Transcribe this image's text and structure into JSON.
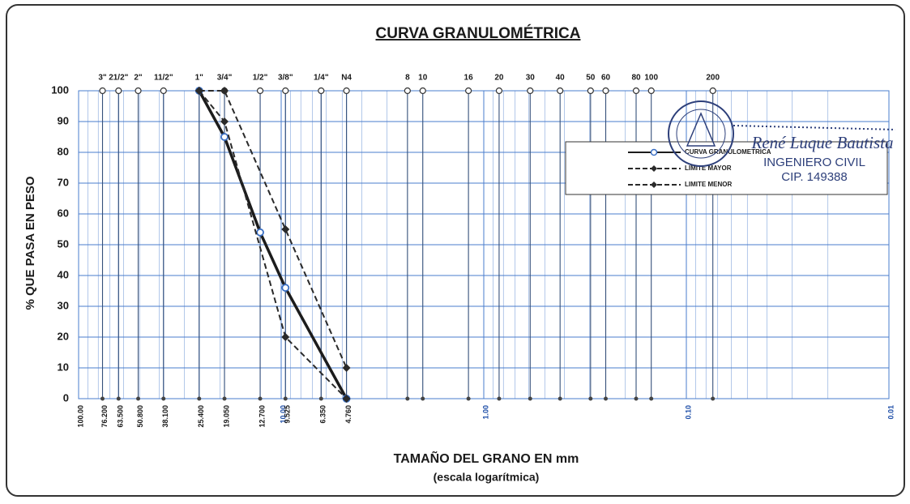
{
  "chart_data": {
    "type": "line",
    "title": "CURVA GRANULOMÉTRICA",
    "x_label": "TAMAÑO DEL GRANO EN mm",
    "x_sublabel": "(escala logarítmica)",
    "y_label": "% QUE PASA EN PESO",
    "xscale": "log",
    "xlim": [
      100,
      0.01
    ],
    "ylim": [
      0,
      100
    ],
    "yticks": [
      0,
      10,
      20,
      30,
      40,
      50,
      60,
      70,
      80,
      90,
      100
    ],
    "grid": true,
    "minor_grid": true,
    "grid_color": "#4a7ccc",
    "xticks": [
      {
        "value": 100,
        "label": "100.00"
      },
      {
        "value": 76.2,
        "label": "76.200"
      },
      {
        "value": 63.5,
        "label": "63.500"
      },
      {
        "value": 50.8,
        "label": "50.800"
      },
      {
        "value": 38.1,
        "label": "38.100"
      },
      {
        "value": 25.4,
        "label": "25.400"
      },
      {
        "value": 19.05,
        "label": "19.050"
      },
      {
        "value": 12.7,
        "label": "12.700"
      },
      {
        "value": 10,
        "label": "10.00",
        "color": "#1f4fa8"
      },
      {
        "value": 9.525,
        "label": "9.525"
      },
      {
        "value": 6.35,
        "label": "6.350"
      },
      {
        "value": 4.76,
        "label": "4.760"
      },
      {
        "value": 1,
        "label": "1.00",
        "color": "#1f4fa8"
      },
      {
        "value": 0.1,
        "label": "0.10",
        "color": "#1f4fa8"
      },
      {
        "value": 0.01,
        "label": "0.01",
        "color": "#1f4fa8"
      }
    ],
    "sieves": {
      "labels": [
        "3\"",
        "21/2\"",
        "2\"",
        "11/2\"",
        "1\"",
        "3/4\"",
        "1/2\"",
        "3/8\"",
        "1/4\"",
        "N4",
        "8",
        "10",
        "16",
        "20",
        "30",
        "40",
        "50",
        "60",
        "80",
        "100",
        "200"
      ],
      "sizes": [
        76.2,
        63.5,
        50.8,
        38.1,
        25.4,
        19.05,
        12.7,
        9.525,
        6.35,
        4.76,
        2.38,
        2.0,
        1.19,
        0.84,
        0.59,
        0.42,
        0.297,
        0.25,
        0.177,
        0.149,
        0.074
      ]
    },
    "series": [
      {
        "name": "CURVA GRANULOMETRICA",
        "color": "#1c1c1c",
        "marker": "circle",
        "marker_color": "#3a6fc4",
        "dashed": false,
        "x": [
          25.4,
          19.05,
          12.7,
          9.525,
          4.76
        ],
        "values": [
          100,
          85,
          54,
          36,
          0
        ]
      },
      {
        "name": "LIMITE MAYOR",
        "color": "#2a2a2a",
        "marker": "diamond",
        "marker_color": "#2a2a2a",
        "dashed": true,
        "x": [
          25.4,
          19.05,
          9.525,
          4.76
        ],
        "values": [
          100,
          100,
          55,
          10
        ]
      },
      {
        "name": "LIMITE MENOR",
        "color": "#2a2a2a",
        "marker": "diamond",
        "marker_color": "#2a2a2a",
        "dashed": true,
        "x": [
          25.4,
          19.05,
          9.525,
          4.76
        ],
        "values": [
          100,
          90,
          20,
          0
        ]
      }
    ]
  },
  "stamp": {
    "name": "René Luque Bautista",
    "title": "INGENIERO CIVIL",
    "cip": "CIP. 149388"
  }
}
